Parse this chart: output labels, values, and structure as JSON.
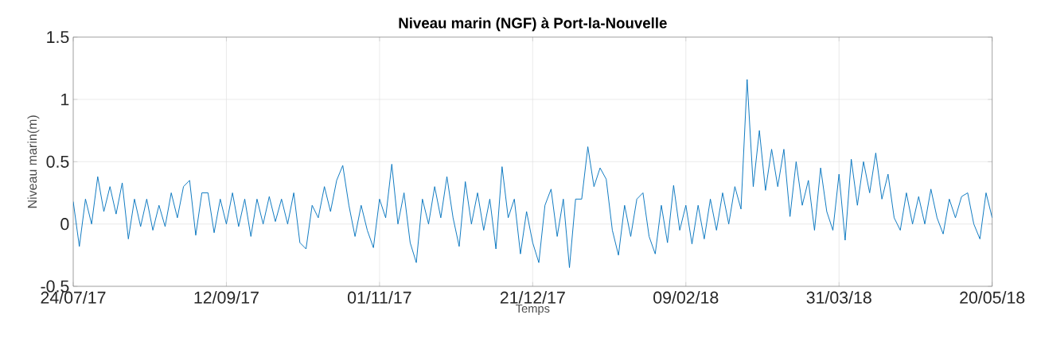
{
  "chart_data": {
    "type": "line",
    "title": "Niveau marin (NGF) à Port-la-Nouvelle",
    "xlabel": "Temps",
    "ylabel": "Niveau marin(m)",
    "xlim": [
      "2017-07-24",
      "2018-05-20"
    ],
    "ylim": [
      -0.5,
      1.5
    ],
    "yticks": [
      -0.5,
      0,
      0.5,
      1,
      1.5
    ],
    "xticks": [
      {
        "value": "2017-07-24",
        "label": "24/07/17"
      },
      {
        "value": "2017-09-12",
        "label": "12/09/17"
      },
      {
        "value": "2017-11-01",
        "label": "01/11/17"
      },
      {
        "value": "2017-12-21",
        "label": "21/12/17"
      },
      {
        "value": "2018-02-09",
        "label": "09/02/18"
      },
      {
        "value": "2018-03-31",
        "label": "31/03/18"
      },
      {
        "value": "2018-05-20",
        "label": "20/05/18"
      }
    ],
    "grid": true,
    "marker": "none",
    "line_style": "solid",
    "x": [
      "2017-07-24",
      "2017-07-26",
      "2017-07-28",
      "2017-07-30",
      "2017-08-01",
      "2017-08-03",
      "2017-08-05",
      "2017-08-07",
      "2017-08-09",
      "2017-08-11",
      "2017-08-13",
      "2017-08-15",
      "2017-08-17",
      "2017-08-19",
      "2017-08-21",
      "2017-08-23",
      "2017-08-25",
      "2017-08-27",
      "2017-08-29",
      "2017-08-31",
      "2017-09-02",
      "2017-09-04",
      "2017-09-06",
      "2017-09-08",
      "2017-09-10",
      "2017-09-12",
      "2017-09-14",
      "2017-09-16",
      "2017-09-18",
      "2017-09-20",
      "2017-09-22",
      "2017-09-24",
      "2017-09-26",
      "2017-09-28",
      "2017-09-30",
      "2017-10-02",
      "2017-10-04",
      "2017-10-06",
      "2017-10-08",
      "2017-10-10",
      "2017-10-12",
      "2017-10-14",
      "2017-10-16",
      "2017-10-18",
      "2017-10-20",
      "2017-10-22",
      "2017-10-24",
      "2017-10-26",
      "2017-10-28",
      "2017-10-30",
      "2017-11-01",
      "2017-11-03",
      "2017-11-05",
      "2017-11-07",
      "2017-11-09",
      "2017-11-11",
      "2017-11-13",
      "2017-11-15",
      "2017-11-17",
      "2017-11-19",
      "2017-11-21",
      "2017-11-23",
      "2017-11-25",
      "2017-11-27",
      "2017-11-29",
      "2017-12-01",
      "2017-12-03",
      "2017-12-05",
      "2017-12-07",
      "2017-12-09",
      "2017-12-11",
      "2017-12-13",
      "2017-12-15",
      "2017-12-17",
      "2017-12-19",
      "2017-12-21",
      "2017-12-23",
      "2017-12-25",
      "2017-12-27",
      "2017-12-29",
      "2017-12-31",
      "2018-01-02",
      "2018-01-04",
      "2018-01-06",
      "2018-01-08",
      "2018-01-10",
      "2018-01-12",
      "2018-01-14",
      "2018-01-16",
      "2018-01-18",
      "2018-01-20",
      "2018-01-22",
      "2018-01-24",
      "2018-01-26",
      "2018-01-28",
      "2018-01-30",
      "2018-02-01",
      "2018-02-03",
      "2018-02-05",
      "2018-02-07",
      "2018-02-09",
      "2018-02-11",
      "2018-02-13",
      "2018-02-15",
      "2018-02-17",
      "2018-02-19",
      "2018-02-21",
      "2018-02-23",
      "2018-02-25",
      "2018-02-27",
      "2018-03-01",
      "2018-03-03",
      "2018-03-05",
      "2018-03-07",
      "2018-03-09",
      "2018-03-11",
      "2018-03-13",
      "2018-03-15",
      "2018-03-17",
      "2018-03-19",
      "2018-03-21",
      "2018-03-23",
      "2018-03-25",
      "2018-03-27",
      "2018-03-29",
      "2018-03-31",
      "2018-04-02",
      "2018-04-04",
      "2018-04-06",
      "2018-04-08",
      "2018-04-10",
      "2018-04-12",
      "2018-04-14",
      "2018-04-16",
      "2018-04-18",
      "2018-04-20",
      "2018-04-22",
      "2018-04-24",
      "2018-04-26",
      "2018-04-28",
      "2018-04-30",
      "2018-05-02",
      "2018-05-04",
      "2018-05-06",
      "2018-05-08",
      "2018-05-10",
      "2018-05-12",
      "2018-05-14",
      "2018-05-16",
      "2018-05-18",
      "2018-05-20"
    ],
    "series": [
      {
        "color": "#0072bd",
        "values": [
          0.18,
          -0.18,
          0.2,
          0.0,
          0.38,
          0.1,
          0.3,
          0.08,
          0.33,
          -0.12,
          0.2,
          -0.02,
          0.2,
          -0.05,
          0.15,
          -0.02,
          0.25,
          0.05,
          0.3,
          0.35,
          -0.09,
          0.25,
          0.25,
          -0.07,
          0.2,
          0.0,
          0.25,
          -0.02,
          0.2,
          -0.1,
          0.2,
          0.0,
          0.22,
          0.02,
          0.2,
          0.0,
          0.25,
          -0.15,
          -0.2,
          0.15,
          0.05,
          0.3,
          0.1,
          0.35,
          0.47,
          0.15,
          -0.1,
          0.15,
          -0.05,
          -0.19,
          0.2,
          0.05,
          0.48,
          0.0,
          0.25,
          -0.15,
          -0.31,
          0.2,
          0.0,
          0.3,
          0.05,
          0.38,
          0.05,
          -0.18,
          0.34,
          0.0,
          0.25,
          -0.05,
          0.2,
          -0.2,
          0.46,
          0.05,
          0.2,
          -0.24,
          0.1,
          -0.15,
          -0.31,
          0.15,
          0.28,
          -0.1,
          0.2,
          -0.35,
          0.2,
          0.2,
          0.62,
          0.3,
          0.45,
          0.36,
          -0.05,
          -0.25,
          0.15,
          -0.1,
          0.2,
          0.25,
          -0.1,
          -0.24,
          0.15,
          -0.15,
          0.31,
          -0.05,
          0.15,
          -0.16,
          0.15,
          -0.12,
          0.2,
          -0.05,
          0.25,
          0.0,
          0.3,
          0.12,
          1.16,
          0.3,
          0.75,
          0.27,
          0.6,
          0.3,
          0.6,
          0.06,
          0.5,
          0.15,
          0.35,
          -0.05,
          0.45,
          0.1,
          -0.05,
          0.4,
          -0.13,
          0.52,
          0.15,
          0.5,
          0.25,
          0.57,
          0.2,
          0.4,
          0.05,
          -0.05,
          0.25,
          0.0,
          0.22,
          0.0,
          0.28,
          0.05,
          -0.08,
          0.2,
          0.05,
          0.22,
          0.25,
          0.0,
          -0.12,
          0.25,
          0.05
        ]
      }
    ]
  }
}
